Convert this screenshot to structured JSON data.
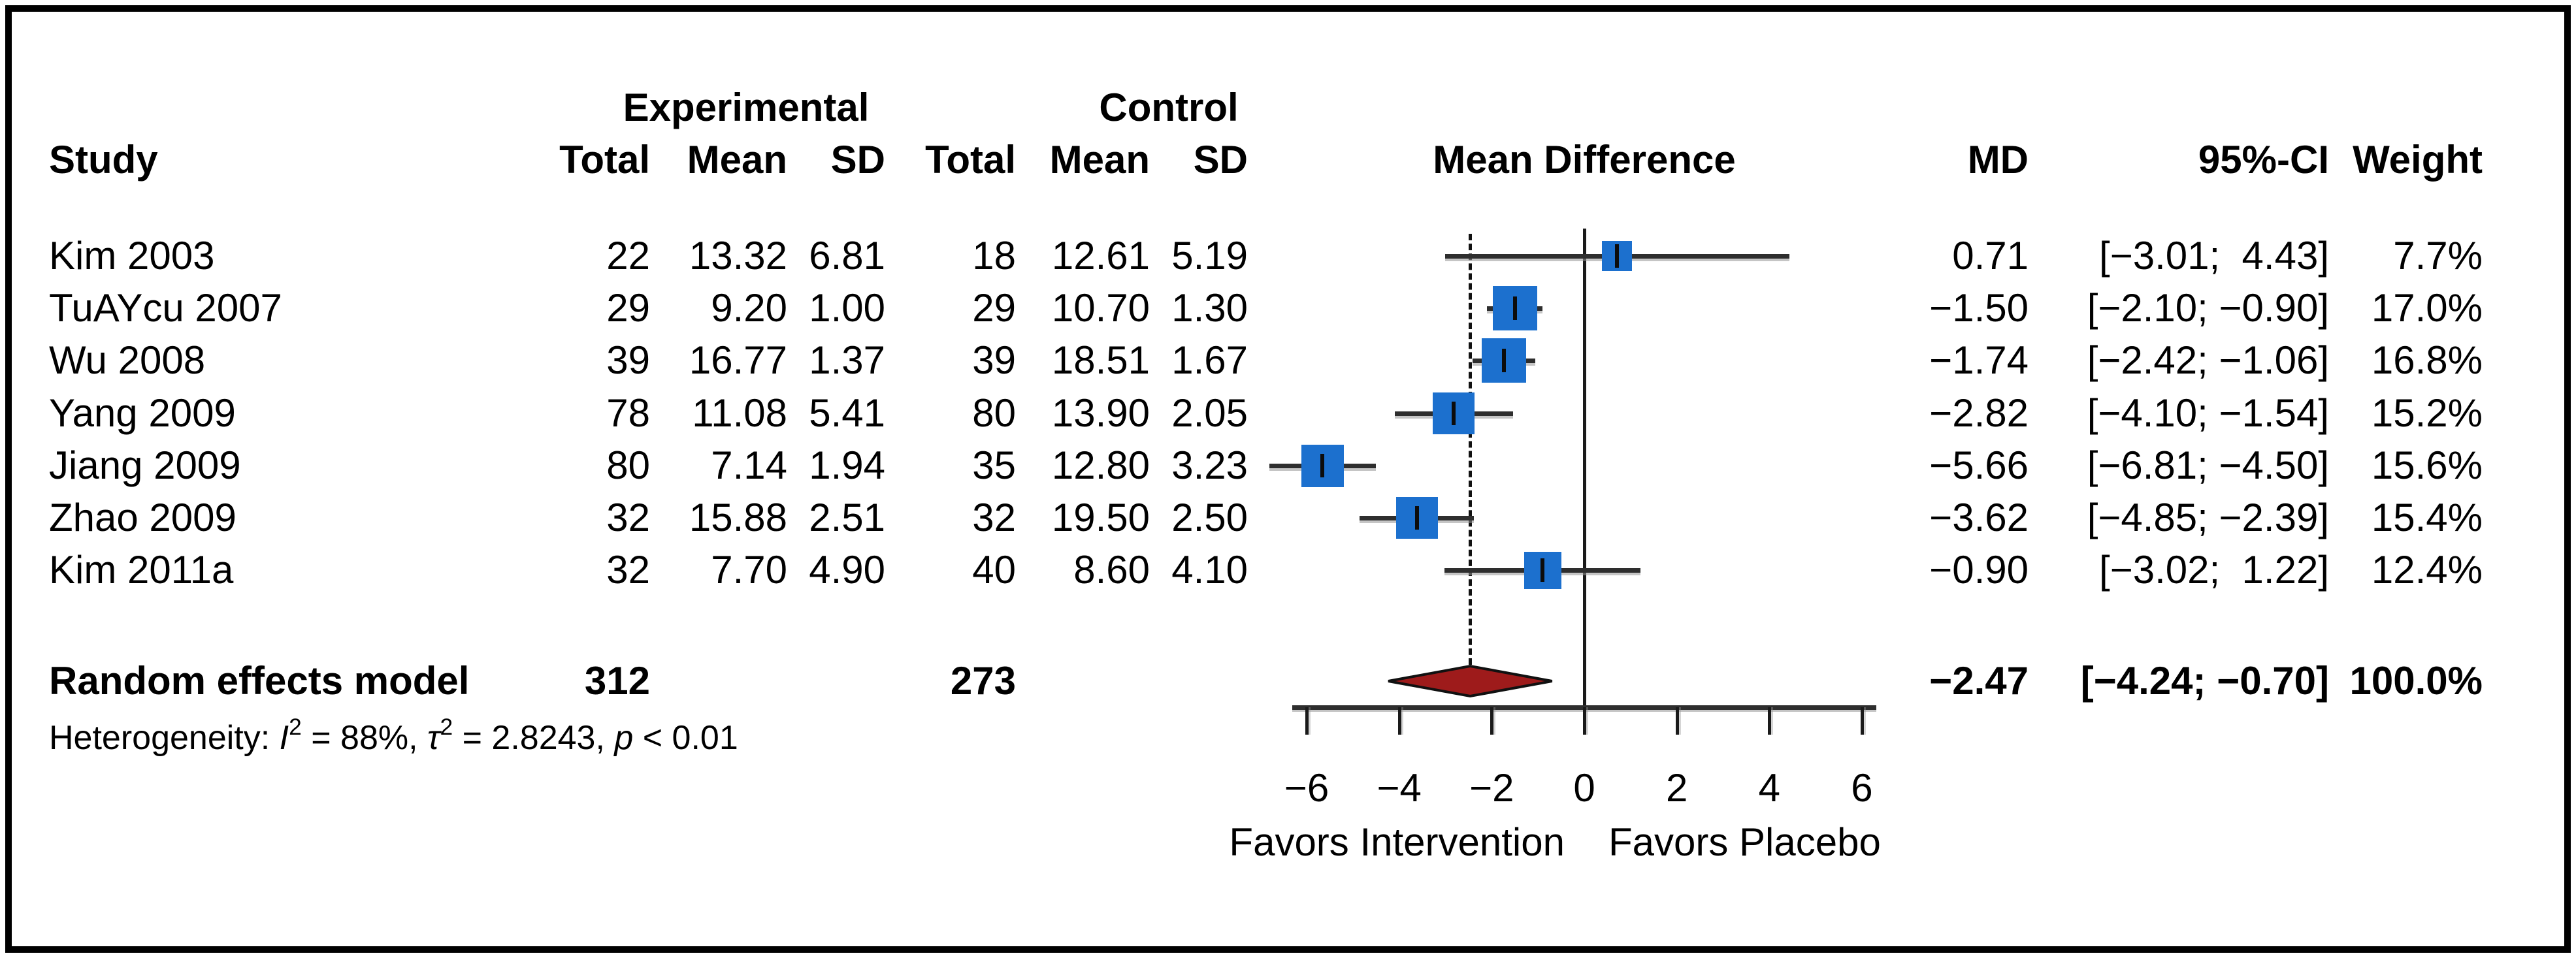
{
  "chart_data": {
    "type": "forest",
    "title": "Mean Difference forest plot (random effects meta-analysis)",
    "header": {
      "group_experimental": "Experimental",
      "group_control": "Control",
      "col_study": "Study",
      "col_total": "Total",
      "col_mean": "Mean",
      "col_sd": "SD",
      "col_effect": "Mean Difference",
      "col_md": "MD",
      "col_ci": "95%-CI",
      "col_weight": "Weight"
    },
    "studies": [
      {
        "name": "Kim 2003",
        "exp_total": "22",
        "exp_mean": "13.32",
        "exp_sd": "6.81",
        "ctl_total": "18",
        "ctl_mean": "12.61",
        "ctl_sd": "5.19",
        "md_label": "0.71",
        "ci_label": "[−3.01;  4.43]",
        "weight_label": "7.7%",
        "md": 0.71,
        "lo": -3.01,
        "hi": 4.43,
        "weight": 7.7
      },
      {
        "name": "TuAYcu 2007",
        "exp_total": "29",
        "exp_mean": "9.20",
        "exp_sd": "1.00",
        "ctl_total": "29",
        "ctl_mean": "10.70",
        "ctl_sd": "1.30",
        "md_label": "−1.50",
        "ci_label": "[−2.10; −0.90]",
        "weight_label": "17.0%",
        "md": -1.5,
        "lo": -2.1,
        "hi": -0.9,
        "weight": 17.0
      },
      {
        "name": "Wu 2008",
        "exp_total": "39",
        "exp_mean": "16.77",
        "exp_sd": "1.37",
        "ctl_total": "39",
        "ctl_mean": "18.51",
        "ctl_sd": "1.67",
        "md_label": "−1.74",
        "ci_label": "[−2.42; −1.06]",
        "weight_label": "16.8%",
        "md": -1.74,
        "lo": -2.42,
        "hi": -1.06,
        "weight": 16.8
      },
      {
        "name": "Yang 2009",
        "exp_total": "78",
        "exp_mean": "11.08",
        "exp_sd": "5.41",
        "ctl_total": "80",
        "ctl_mean": "13.90",
        "ctl_sd": "2.05",
        "md_label": "−2.82",
        "ci_label": "[−4.10; −1.54]",
        "weight_label": "15.2%",
        "md": -2.82,
        "lo": -4.1,
        "hi": -1.54,
        "weight": 15.2
      },
      {
        "name": "Jiang 2009",
        "exp_total": "80",
        "exp_mean": "7.14",
        "exp_sd": "1.94",
        "ctl_total": "35",
        "ctl_mean": "12.80",
        "ctl_sd": "3.23",
        "md_label": "−5.66",
        "ci_label": "[−6.81; −4.50]",
        "weight_label": "15.6%",
        "md": -5.66,
        "lo": -6.81,
        "hi": -4.5,
        "weight": 15.6
      },
      {
        "name": "Zhao 2009",
        "exp_total": "32",
        "exp_mean": "15.88",
        "exp_sd": "2.51",
        "ctl_total": "32",
        "ctl_mean": "19.50",
        "ctl_sd": "2.50",
        "md_label": "−3.62",
        "ci_label": "[−4.85; −2.39]",
        "weight_label": "15.4%",
        "md": -3.62,
        "lo": -4.85,
        "hi": -2.39,
        "weight": 15.4
      },
      {
        "name": "Kim 2011a",
        "exp_total": "32",
        "exp_mean": "7.70",
        "exp_sd": "4.90",
        "ctl_total": "40",
        "ctl_mean": "8.60",
        "ctl_sd": "4.10",
        "md_label": "−0.90",
        "ci_label": "[−3.02;  1.22]",
        "weight_label": "12.4%",
        "md": -0.9,
        "lo": -3.02,
        "hi": 1.22,
        "weight": 12.4
      }
    ],
    "summary": {
      "label": "Random effects model",
      "exp_total": "312",
      "ctl_total": "273",
      "md_label": "−2.47",
      "ci_label": "[−4.24; −0.70]",
      "weight_label": "100.0%",
      "md": -2.47,
      "lo": -4.24,
      "hi": -0.7
    },
    "heterogeneity_segments": [
      {
        "text": "Heterogeneity: "
      },
      {
        "text": "I",
        "italic": true
      },
      {
        "text": "2",
        "sup": true
      },
      {
        "text": " = 88%, "
      },
      {
        "text": "τ",
        "italic": true
      },
      {
        "text": "2",
        "sup": true
      },
      {
        "text": " = 2.8243, "
      },
      {
        "text": "p",
        "italic": true
      },
      {
        "text": " < 0.01"
      }
    ],
    "axis": {
      "ticks": [
        -6,
        -4,
        -2,
        0,
        2,
        4,
        6
      ],
      "tick_labels": [
        "−6",
        "−4",
        "−2",
        "0",
        "2",
        "4",
        "6"
      ],
      "xlim": [
        -6.9,
        6.9
      ],
      "zero_line": 0,
      "dashed_line_at": -2.47,
      "label_left": "Favors Intervention",
      "label_right": "Favors Placebo"
    },
    "colors": {
      "square": "#1C70CE",
      "diamond_fill": "#9E1B1B",
      "diamond_stroke": "#111111",
      "line": "#2e2e2e",
      "text": "#000000"
    }
  }
}
